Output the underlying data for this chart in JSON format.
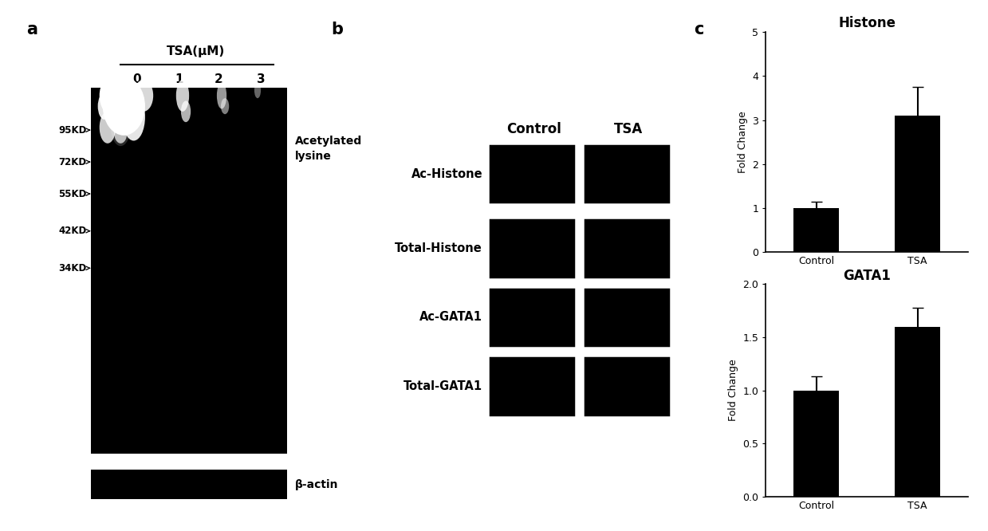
{
  "bg_color": "#ffffff",
  "text_color": "#000000",
  "bar_color": "#000000",
  "panel_a": {
    "label": "a",
    "tsa_label": "TSA(μM)",
    "lane_labels": [
      "0",
      "1",
      "2",
      "3"
    ],
    "mw_markers": [
      "95KD",
      "72KD",
      "55KD",
      "42KD",
      "34KD"
    ],
    "acetylated_label": "Acetylated\nlysine",
    "beta_actin_label": "β-actin"
  },
  "panel_b": {
    "label": "b",
    "row_labels": [
      "Ac-Histone",
      "Total-Histone",
      "Ac-GATA1",
      "Total-GATA1"
    ],
    "col_labels": [
      "Control",
      "TSA"
    ]
  },
  "panel_c": {
    "label": "c",
    "histone": {
      "title": "Histone",
      "categories": [
        "Control",
        "TSA"
      ],
      "values": [
        1.0,
        3.1
      ],
      "errors": [
        0.15,
        0.65
      ],
      "ylim": [
        0,
        5
      ],
      "yticks": [
        0,
        1,
        2,
        3,
        4,
        5
      ],
      "ylabel": "Fold Change"
    },
    "gata1": {
      "title": "GATA1",
      "categories": [
        "Control",
        "TSA"
      ],
      "values": [
        1.0,
        1.6
      ],
      "errors": [
        0.13,
        0.18
      ],
      "ylim": [
        0,
        2
      ],
      "yticks": [
        0,
        0.5,
        1.0,
        1.5,
        2.0
      ],
      "ylabel": "Fold Change"
    }
  }
}
